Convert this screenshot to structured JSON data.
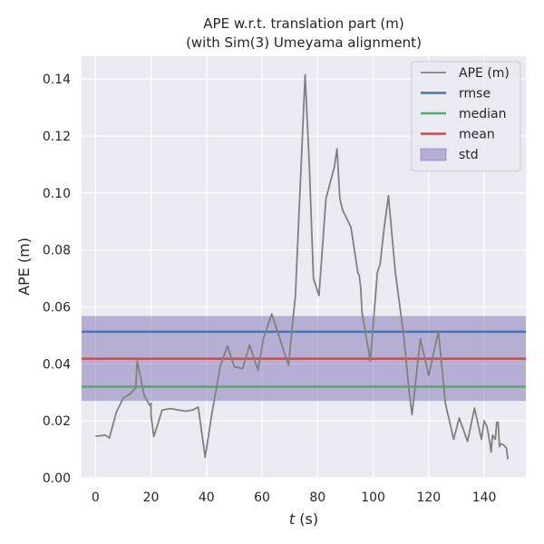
{
  "chart_data": {
    "type": "line",
    "title": "APE w.r.t. translation part (m)",
    "subtitle": "(with Sim(3) Umeyama alignment)",
    "xlabel": "t (s)",
    "xlabel_italic": "t",
    "xlabel_unit": " (s)",
    "ylabel": "APE (m)",
    "xlim": [
      -5,
      155
    ],
    "ylim": [
      0,
      0.148
    ],
    "xticks": [
      0,
      20,
      40,
      60,
      80,
      100,
      120,
      140
    ],
    "xtick_labels": [
      "0",
      "20",
      "40",
      "60",
      "80",
      "100",
      "120",
      "140"
    ],
    "yticks": [
      0.0,
      0.02,
      0.04,
      0.06,
      0.08,
      0.1,
      0.12,
      0.14
    ],
    "ytick_labels": [
      "0.00",
      "0.02",
      "0.04",
      "0.06",
      "0.08",
      "0.10",
      "0.12",
      "0.14"
    ],
    "grid": true,
    "legend_position": "top-right",
    "stats": {
      "rmse": 0.0513,
      "median": 0.032,
      "mean": 0.0418,
      "std_low": 0.027,
      "std_high": 0.0568
    },
    "series": [
      {
        "name": "APE (m)",
        "color": "#808080",
        "points": [
          [
            0,
            0.0146
          ],
          [
            2,
            0.0148
          ],
          [
            3.5,
            0.015
          ],
          [
            5,
            0.014
          ],
          [
            7.5,
            0.023
          ],
          [
            10,
            0.028
          ],
          [
            12.5,
            0.0295
          ],
          [
            14.5,
            0.0315
          ],
          [
            15,
            0.041
          ],
          [
            16,
            0.0365
          ],
          [
            17.5,
            0.029
          ],
          [
            19.5,
            0.0255
          ],
          [
            20,
            0.0262
          ],
          [
            20,
            0.022
          ],
          [
            21,
            0.0145
          ],
          [
            22.5,
            0.019
          ],
          [
            24,
            0.0238
          ],
          [
            27,
            0.0243
          ],
          [
            30,
            0.0238
          ],
          [
            32.5,
            0.0234
          ],
          [
            35,
            0.0238
          ],
          [
            37,
            0.0248
          ],
          [
            39.5,
            0.0072
          ],
          [
            42,
            0.023
          ],
          [
            45,
            0.0395
          ],
          [
            47.5,
            0.0463
          ],
          [
            50,
            0.039
          ],
          [
            53,
            0.0383
          ],
          [
            55.5,
            0.0467
          ],
          [
            58.5,
            0.0378
          ],
          [
            60.5,
            0.049
          ],
          [
            63.5,
            0.0575
          ],
          [
            67,
            0.047
          ],
          [
            69.5,
            0.0395
          ],
          [
            72,
            0.064
          ],
          [
            75.5,
            0.1415
          ],
          [
            77,
            0.11
          ],
          [
            78.5,
            0.07
          ],
          [
            80.5,
            0.064
          ],
          [
            83,
            0.098
          ],
          [
            86,
            0.109
          ],
          [
            87,
            0.1155
          ],
          [
            88,
            0.098
          ],
          [
            89,
            0.094
          ],
          [
            92,
            0.088
          ],
          [
            94.5,
            0.072
          ],
          [
            95,
            0.071
          ],
          [
            95.5,
            0.067
          ],
          [
            96,
            0.058
          ],
          [
            99,
            0.041
          ],
          [
            101.5,
            0.072
          ],
          [
            102.5,
            0.075
          ],
          [
            104,
            0.088
          ],
          [
            105.5,
            0.099
          ],
          [
            108,
            0.072
          ],
          [
            111,
            0.05
          ],
          [
            113,
            0.03
          ],
          [
            114,
            0.0222
          ],
          [
            117,
            0.0488
          ],
          [
            120,
            0.036
          ],
          [
            123.5,
            0.0515
          ],
          [
            126,
            0.0262
          ],
          [
            129,
            0.0135
          ],
          [
            131,
            0.021
          ],
          [
            134,
            0.0128
          ],
          [
            136.5,
            0.0245
          ],
          [
            139,
            0.0135
          ],
          [
            140,
            0.02
          ],
          [
            141,
            0.018
          ],
          [
            142,
            0.0125
          ],
          [
            142.5,
            0.009
          ],
          [
            143,
            0.015
          ],
          [
            144,
            0.0135
          ],
          [
            144.5,
            0.0195
          ],
          [
            145,
            0.0195
          ],
          [
            145.5,
            0.011
          ],
          [
            146,
            0.012
          ],
          [
            147,
            0.0115
          ],
          [
            148,
            0.0105
          ],
          [
            148.5,
            0.0065
          ]
        ]
      }
    ],
    "legend": [
      {
        "label": "APE (m)",
        "kind": "line",
        "color": "#808080"
      },
      {
        "label": "rmse",
        "kind": "line",
        "color": "#4c72b0"
      },
      {
        "label": "median",
        "kind": "line",
        "color": "#55a868"
      },
      {
        "label": "mean",
        "kind": "line",
        "color": "#c44e52"
      },
      {
        "label": "std",
        "kind": "patch",
        "color": "#8172b3"
      }
    ],
    "colors": {
      "plot_background": "#eaeaf2",
      "grid": "#ffffff",
      "ape": "#808080",
      "rmse": "#4c72b0",
      "median": "#55a868",
      "mean": "#c44e52",
      "std": "#8172b3"
    }
  }
}
